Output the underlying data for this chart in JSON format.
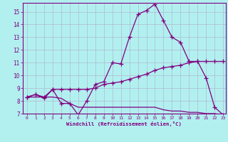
{
  "xlabel": "Windchill (Refroidissement éolien,°C)",
  "bg_color": "#b2f0f0",
  "line_color": "#800080",
  "grid_color": "#b0b8d0",
  "xlim": [
    -0.5,
    23.3
  ],
  "ylim": [
    7.0,
    15.7
  ],
  "yticks": [
    7,
    8,
    9,
    10,
    11,
    12,
    13,
    14,
    15
  ],
  "xticks": [
    0,
    1,
    2,
    3,
    4,
    5,
    6,
    7,
    8,
    9,
    10,
    11,
    12,
    13,
    14,
    15,
    16,
    17,
    18,
    19,
    20,
    21,
    22,
    23
  ],
  "line1_x": [
    0,
    1,
    2,
    3,
    4,
    5,
    6,
    7,
    8,
    9,
    10,
    11,
    12,
    13,
    14,
    15,
    16,
    17,
    18,
    19,
    20,
    21,
    22,
    23
  ],
  "line1_y": [
    8.3,
    8.5,
    8.2,
    8.9,
    7.8,
    7.8,
    6.9,
    8.0,
    9.3,
    9.5,
    11.0,
    10.9,
    13.0,
    14.8,
    15.1,
    15.6,
    14.3,
    13.0,
    12.6,
    11.1,
    11.1,
    9.8,
    7.5,
    6.9
  ],
  "line2_x": [
    0,
    1,
    2,
    3,
    4,
    5,
    6,
    7,
    8,
    9,
    10,
    11,
    12,
    13,
    14,
    15,
    16,
    17,
    18,
    19,
    20,
    21,
    22,
    23
  ],
  "line2_y": [
    8.3,
    8.5,
    8.3,
    8.9,
    8.9,
    8.9,
    8.9,
    8.9,
    9.0,
    9.3,
    9.4,
    9.5,
    9.7,
    9.9,
    10.1,
    10.4,
    10.6,
    10.7,
    10.8,
    11.0,
    11.1,
    11.1,
    11.1,
    11.1
  ],
  "line3_x": [
    0,
    1,
    2,
    3,
    4,
    5,
    6,
    7,
    8,
    9,
    10,
    11,
    12,
    13,
    14,
    15,
    16,
    17,
    18,
    19,
    20,
    21,
    22,
    23
  ],
  "line3_y": [
    8.3,
    8.3,
    8.3,
    8.3,
    8.2,
    7.8,
    7.5,
    7.5,
    7.5,
    7.5,
    7.5,
    7.5,
    7.5,
    7.5,
    7.5,
    7.5,
    7.3,
    7.2,
    7.2,
    7.1,
    7.1,
    7.0,
    7.0,
    6.9
  ]
}
